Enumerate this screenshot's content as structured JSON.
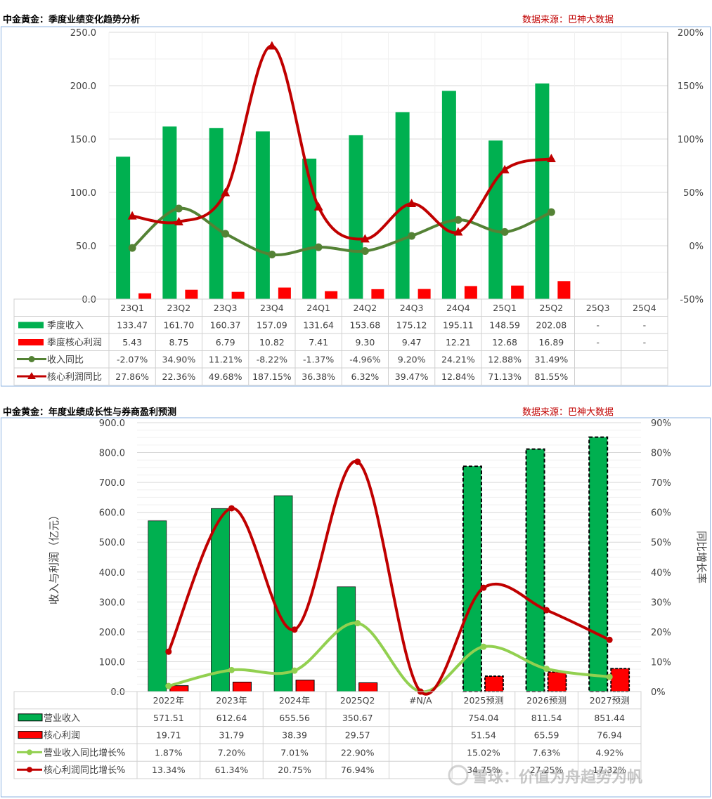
{
  "colors": {
    "revenue": "#00b050",
    "profit": "#ff0000",
    "rev_line_q": "#548235",
    "profit_line": "#c00000",
    "rev_line_y": "#92d050",
    "source": "#c00000"
  },
  "watermark": "雪球：价值为舟趋势为帆",
  "chart_data": [
    {
      "type": "bar",
      "title": "中金黄金：季度业绩变化趋势分析",
      "source": "数据来源：巴神大数据",
      "categories": [
        "23Q1",
        "23Q2",
        "23Q3",
        "23Q4",
        "24Q1",
        "24Q2",
        "24Q3",
        "24Q4",
        "25Q1",
        "25Q2",
        "25Q3",
        "25Q4"
      ],
      "ylim": [
        0,
        250
      ],
      "y_ticks": [
        "0.0",
        "50.0",
        "100.0",
        "150.0",
        "200.0",
        "250.0"
      ],
      "y2lim": [
        -50,
        200
      ],
      "y2_ticks": [
        "-50%",
        "0%",
        "50%",
        "100%",
        "150%",
        "200%"
      ],
      "grid": true,
      "series": [
        {
          "name": "季度收入",
          "kind": "bar",
          "color": "#00b050",
          "values": [
            133.47,
            161.7,
            160.37,
            157.09,
            131.64,
            153.68,
            175.12,
            195.11,
            148.59,
            202.08,
            null,
            null
          ],
          "labels": [
            "133.47",
            "161.70",
            "160.37",
            "157.09",
            "131.64",
            "153.68",
            "175.12",
            "195.11",
            "148.59",
            "202.08",
            "-",
            "-"
          ]
        },
        {
          "name": "季度核心利润",
          "kind": "bar",
          "color": "#ff0000",
          "values": [
            5.43,
            8.75,
            6.79,
            10.82,
            7.41,
            9.3,
            9.47,
            12.21,
            12.68,
            16.89,
            null,
            null
          ],
          "labels": [
            "5.43",
            "8.75",
            "6.79",
            "10.82",
            "7.41",
            "9.30",
            "9.47",
            "12.21",
            "12.68",
            "16.89",
            "-",
            "-"
          ]
        },
        {
          "name": "收入同比",
          "kind": "line",
          "marker": "circle",
          "color": "#548235",
          "values": [
            -2.07,
            34.9,
            11.21,
            -8.22,
            -1.37,
            -4.96,
            9.2,
            24.21,
            12.88,
            31.49,
            null,
            null
          ],
          "labels": [
            "-2.07%",
            "34.90%",
            "11.21%",
            "-8.22%",
            "-1.37%",
            "-4.96%",
            "9.20%",
            "24.21%",
            "12.88%",
            "31.49%",
            "",
            ""
          ]
        },
        {
          "name": "核心利润同比",
          "kind": "line",
          "marker": "triangle",
          "color": "#c00000",
          "values": [
            27.86,
            22.36,
            49.68,
            187.15,
            36.38,
            6.32,
            39.47,
            12.84,
            71.13,
            81.55,
            null,
            null
          ],
          "labels": [
            "27.86%",
            "22.36%",
            "49.68%",
            "187.15%",
            "36.38%",
            "6.32%",
            "39.47%",
            "12.84%",
            "71.13%",
            "81.55%",
            "",
            ""
          ]
        }
      ]
    },
    {
      "type": "bar",
      "title": "中金黄金：年度业绩成长性与券商盈利预测",
      "source": "数据来源：巴神大数据",
      "ylabel": "收入与利润（亿元）",
      "y2label": "同比增长率",
      "categories": [
        "2022年",
        "2023年",
        "2024年",
        "2025Q2",
        "#N/A",
        "2025预测",
        "2026预测",
        "2027预测"
      ],
      "ylim": [
        0,
        900
      ],
      "y_ticks": [
        "0.0",
        "100.0",
        "200.0",
        "300.0",
        "400.0",
        "500.0",
        "600.0",
        "700.0",
        "800.0",
        "900.0"
      ],
      "y2lim": [
        0,
        90
      ],
      "y2_ticks": [
        "0%",
        "10%",
        "20%",
        "30%",
        "40%",
        "50%",
        "60%",
        "70%",
        "80%",
        "90%"
      ],
      "grid": true,
      "series": [
        {
          "name": "营业收入",
          "kind": "bar",
          "color": "#00b050",
          "values": [
            571.51,
            612.64,
            655.56,
            350.67,
            null,
            754.04,
            811.54,
            851.44
          ],
          "labels": [
            "571.51",
            "612.64",
            "655.56",
            "350.67",
            "",
            "754.04",
            "811.54",
            "851.44"
          ]
        },
        {
          "name": "核心利润",
          "kind": "bar",
          "color": "#ff0000",
          "values": [
            19.71,
            31.79,
            38.39,
            29.57,
            null,
            51.54,
            65.59,
            76.94
          ],
          "labels": [
            "19.71",
            "31.79",
            "38.39",
            "29.57",
            "",
            "51.54",
            "65.59",
            "76.94"
          ]
        },
        {
          "name": "营业收入同比增长%",
          "kind": "line",
          "marker": "circle",
          "color": "#92d050",
          "values": [
            1.87,
            7.2,
            7.01,
            22.9,
            0,
            15.02,
            7.63,
            4.92
          ],
          "labels": [
            "1.87%",
            "7.20%",
            "7.01%",
            "22.90%",
            "",
            "15.02%",
            "7.63%",
            "4.92%"
          ]
        },
        {
          "name": "核心利润同比增长%",
          "kind": "line",
          "marker": "circle",
          "color": "#c00000",
          "values": [
            13.34,
            61.34,
            20.75,
            76.94,
            0,
            34.75,
            27.25,
            17.32
          ],
          "labels": [
            "13.34%",
            "61.34%",
            "20.75%",
            "76.94%",
            "",
            "34.75%",
            "27.25%",
            "17.32%"
          ]
        }
      ]
    }
  ]
}
